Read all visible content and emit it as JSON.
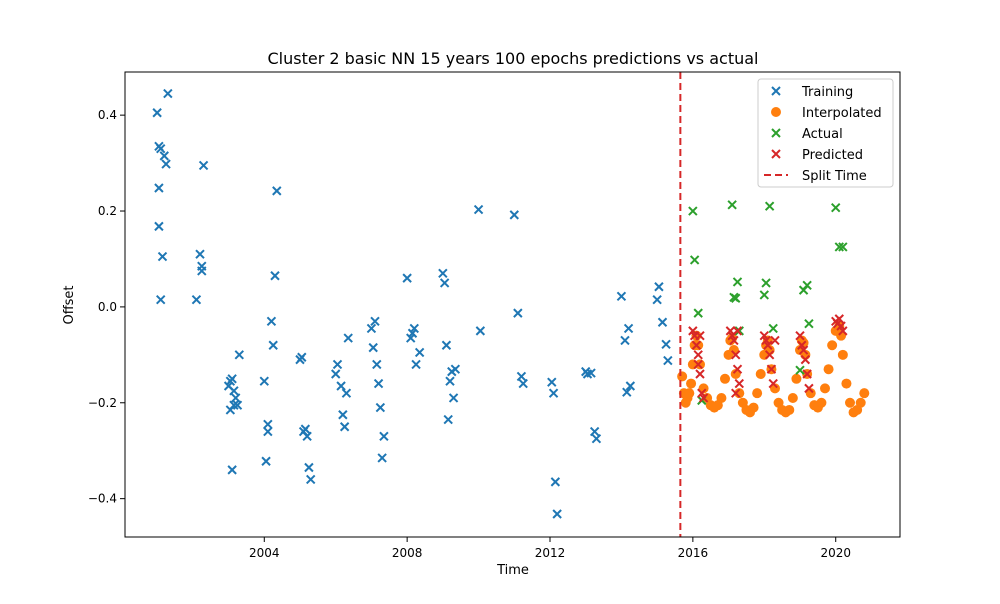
{
  "chart_data": {
    "type": "scatter",
    "title": "Cluster 2 basic NN 15 years 100 epochs predictions vs actual",
    "xlabel": "Time",
    "ylabel": "Offset",
    "xlim": [
      2000.1,
      2021.8
    ],
    "ylim": [
      -0.48,
      0.49
    ],
    "x_ticks": [
      2004,
      2008,
      2012,
      2016,
      2020
    ],
    "y_ticks": [
      0.4,
      0.2,
      0.0,
      -0.2,
      -0.4
    ],
    "x_tick_labels": [
      "2004",
      "2008",
      "2012",
      "2016",
      "2020"
    ],
    "y_tick_labels": [
      "0.4",
      "0.2",
      "0.0",
      "−0.2",
      "−0.4"
    ],
    "split_time": 2015.65,
    "legend_position": "top-right",
    "series": [
      {
        "name": "Training",
        "color": "#1f77b4",
        "marker": "x",
        "points": [
          [
            2001.0,
            0.405
          ],
          [
            2001.05,
            0.335
          ],
          [
            2001.3,
            0.445
          ],
          [
            2001.1,
            0.33
          ],
          [
            2001.2,
            0.315
          ],
          [
            2001.25,
            0.298
          ],
          [
            2001.05,
            0.248
          ],
          [
            2001.05,
            0.168
          ],
          [
            2001.15,
            0.105
          ],
          [
            2001.1,
            0.015
          ],
          [
            2002.1,
            0.015
          ],
          [
            2002.2,
            0.11
          ],
          [
            2002.25,
            0.085
          ],
          [
            2002.25,
            0.075
          ],
          [
            2002.3,
            0.295
          ],
          [
            2003.0,
            -0.165
          ],
          [
            2003.05,
            -0.155
          ],
          [
            2003.1,
            -0.15
          ],
          [
            2003.15,
            -0.175
          ],
          [
            2003.2,
            -0.19
          ],
          [
            2003.05,
            -0.215
          ],
          [
            2003.15,
            -0.205
          ],
          [
            2003.25,
            -0.205
          ],
          [
            2003.3,
            -0.1
          ],
          [
            2003.1,
            -0.34
          ],
          [
            2004.0,
            -0.155
          ],
          [
            2004.05,
            -0.322
          ],
          [
            2004.1,
            -0.245
          ],
          [
            2004.1,
            -0.26
          ],
          [
            2004.2,
            -0.03
          ],
          [
            2004.25,
            -0.08
          ],
          [
            2004.3,
            0.065
          ],
          [
            2004.35,
            0.242
          ],
          [
            2005.0,
            -0.11
          ],
          [
            2005.05,
            -0.105
          ],
          [
            2005.1,
            -0.26
          ],
          [
            2005.15,
            -0.255
          ],
          [
            2005.2,
            -0.27
          ],
          [
            2005.25,
            -0.335
          ],
          [
            2005.3,
            -0.36
          ],
          [
            2006.0,
            -0.14
          ],
          [
            2006.05,
            -0.12
          ],
          [
            2006.15,
            -0.165
          ],
          [
            2006.2,
            -0.225
          ],
          [
            2006.25,
            -0.25
          ],
          [
            2006.3,
            -0.18
          ],
          [
            2006.35,
            -0.065
          ],
          [
            2007.0,
            -0.045
          ],
          [
            2007.05,
            -0.085
          ],
          [
            2007.1,
            -0.03
          ],
          [
            2007.15,
            -0.12
          ],
          [
            2007.2,
            -0.16
          ],
          [
            2007.25,
            -0.21
          ],
          [
            2007.3,
            -0.315
          ],
          [
            2007.35,
            -0.27
          ],
          [
            2008.0,
            0.06
          ],
          [
            2008.1,
            -0.065
          ],
          [
            2008.15,
            -0.055
          ],
          [
            2008.2,
            -0.045
          ],
          [
            2008.25,
            -0.12
          ],
          [
            2008.35,
            -0.095
          ],
          [
            2009.0,
            0.07
          ],
          [
            2009.05,
            0.05
          ],
          [
            2009.1,
            -0.08
          ],
          [
            2009.15,
            -0.235
          ],
          [
            2009.2,
            -0.155
          ],
          [
            2009.25,
            -0.135
          ],
          [
            2009.3,
            -0.19
          ],
          [
            2009.35,
            -0.13
          ],
          [
            2010.0,
            0.203
          ],
          [
            2010.05,
            -0.05
          ],
          [
            2011.0,
            0.192
          ],
          [
            2011.1,
            -0.013
          ],
          [
            2011.2,
            -0.145
          ],
          [
            2011.25,
            -0.16
          ],
          [
            2012.05,
            -0.157
          ],
          [
            2012.1,
            -0.18
          ],
          [
            2012.15,
            -0.365
          ],
          [
            2012.2,
            -0.432
          ],
          [
            2013.0,
            -0.135
          ],
          [
            2013.05,
            -0.14
          ],
          [
            2013.15,
            -0.138
          ],
          [
            2013.25,
            -0.26
          ],
          [
            2013.3,
            -0.275
          ],
          [
            2014.0,
            0.022
          ],
          [
            2014.1,
            -0.07
          ],
          [
            2014.15,
            -0.178
          ],
          [
            2014.2,
            -0.045
          ],
          [
            2014.25,
            -0.165
          ],
          [
            2015.0,
            0.015
          ],
          [
            2015.05,
            0.042
          ],
          [
            2015.15,
            -0.032
          ],
          [
            2015.25,
            -0.078
          ],
          [
            2015.3,
            -0.112
          ]
        ]
      },
      {
        "name": "Interpolated",
        "color": "#ff7f0e",
        "marker": "o",
        "points": [
          [
            2015.7,
            -0.145
          ],
          [
            2015.75,
            -0.18
          ],
          [
            2015.8,
            -0.2
          ],
          [
            2015.85,
            -0.19
          ],
          [
            2015.9,
            -0.18
          ],
          [
            2015.95,
            -0.16
          ],
          [
            2016.0,
            -0.12
          ],
          [
            2016.05,
            -0.08
          ],
          [
            2016.1,
            -0.06
          ],
          [
            2016.15,
            -0.08
          ],
          [
            2016.2,
            -0.12
          ],
          [
            2016.3,
            -0.17
          ],
          [
            2016.4,
            -0.19
          ],
          [
            2016.5,
            -0.205
          ],
          [
            2016.6,
            -0.21
          ],
          [
            2016.7,
            -0.205
          ],
          [
            2016.8,
            -0.19
          ],
          [
            2016.9,
            -0.15
          ],
          [
            2017.0,
            -0.1
          ],
          [
            2017.05,
            -0.07
          ],
          [
            2017.1,
            -0.065
          ],
          [
            2017.15,
            -0.09
          ],
          [
            2017.2,
            -0.14
          ],
          [
            2017.3,
            -0.18
          ],
          [
            2017.4,
            -0.2
          ],
          [
            2017.5,
            -0.215
          ],
          [
            2017.6,
            -0.22
          ],
          [
            2017.7,
            -0.21
          ],
          [
            2017.8,
            -0.18
          ],
          [
            2017.9,
            -0.14
          ],
          [
            2018.0,
            -0.1
          ],
          [
            2018.05,
            -0.08
          ],
          [
            2018.1,
            -0.07
          ],
          [
            2018.15,
            -0.09
          ],
          [
            2018.2,
            -0.13
          ],
          [
            2018.3,
            -0.17
          ],
          [
            2018.4,
            -0.2
          ],
          [
            2018.5,
            -0.215
          ],
          [
            2018.6,
            -0.22
          ],
          [
            2018.7,
            -0.215
          ],
          [
            2018.8,
            -0.19
          ],
          [
            2018.9,
            -0.15
          ],
          [
            2019.0,
            -0.09
          ],
          [
            2019.05,
            -0.07
          ],
          [
            2019.1,
            -0.075
          ],
          [
            2019.15,
            -0.1
          ],
          [
            2019.2,
            -0.14
          ],
          [
            2019.3,
            -0.18
          ],
          [
            2019.4,
            -0.205
          ],
          [
            2019.5,
            -0.21
          ],
          [
            2019.6,
            -0.2
          ],
          [
            2019.7,
            -0.17
          ],
          [
            2019.8,
            -0.13
          ],
          [
            2019.9,
            -0.08
          ],
          [
            2020.0,
            -0.05
          ],
          [
            2020.1,
            -0.04
          ],
          [
            2020.15,
            -0.06
          ],
          [
            2020.2,
            -0.1
          ],
          [
            2020.3,
            -0.16
          ],
          [
            2020.4,
            -0.2
          ],
          [
            2020.5,
            -0.22
          ],
          [
            2020.6,
            -0.215
          ],
          [
            2020.7,
            -0.2
          ],
          [
            2020.8,
            -0.18
          ]
        ]
      },
      {
        "name": "Actual",
        "color": "#2ca02c",
        "marker": "x",
        "points": [
          [
            2016.0,
            0.2
          ],
          [
            2016.05,
            0.098
          ],
          [
            2016.15,
            -0.013
          ],
          [
            2016.25,
            -0.195
          ],
          [
            2017.1,
            0.213
          ],
          [
            2017.15,
            0.02
          ],
          [
            2017.2,
            0.018
          ],
          [
            2017.25,
            0.052
          ],
          [
            2017.3,
            -0.05
          ],
          [
            2018.0,
            0.025
          ],
          [
            2018.05,
            0.05
          ],
          [
            2018.15,
            0.21
          ],
          [
            2018.25,
            -0.045
          ],
          [
            2019.0,
            -0.132
          ],
          [
            2019.1,
            0.035
          ],
          [
            2019.2,
            0.045
          ],
          [
            2019.25,
            -0.035
          ],
          [
            2020.0,
            0.207
          ],
          [
            2020.1,
            0.125
          ],
          [
            2020.2,
            0.125
          ]
        ]
      },
      {
        "name": "Predicted",
        "color": "#d62728",
        "marker": "x",
        "points": [
          [
            2016.0,
            -0.05
          ],
          [
            2016.05,
            -0.06
          ],
          [
            2016.1,
            -0.08
          ],
          [
            2016.15,
            -0.1
          ],
          [
            2016.2,
            -0.14
          ],
          [
            2016.25,
            -0.18
          ],
          [
            2016.3,
            -0.19
          ],
          [
            2016.2,
            -0.06
          ],
          [
            2016.15,
            -0.12
          ],
          [
            2017.05,
            -0.05
          ],
          [
            2017.1,
            -0.06
          ],
          [
            2017.15,
            -0.07
          ],
          [
            2017.2,
            -0.1
          ],
          [
            2017.25,
            -0.13
          ],
          [
            2017.3,
            -0.16
          ],
          [
            2017.25,
            -0.05
          ],
          [
            2017.2,
            -0.18
          ],
          [
            2018.0,
            -0.06
          ],
          [
            2018.05,
            -0.07
          ],
          [
            2018.1,
            -0.08
          ],
          [
            2018.15,
            -0.1
          ],
          [
            2018.2,
            -0.13
          ],
          [
            2018.25,
            -0.16
          ],
          [
            2018.3,
            -0.07
          ],
          [
            2019.0,
            -0.06
          ],
          [
            2019.05,
            -0.08
          ],
          [
            2019.1,
            -0.09
          ],
          [
            2019.15,
            -0.11
          ],
          [
            2019.2,
            -0.14
          ],
          [
            2019.25,
            -0.17
          ],
          [
            2020.0,
            -0.03
          ],
          [
            2020.05,
            -0.035
          ],
          [
            2020.1,
            -0.025
          ],
          [
            2020.15,
            -0.04
          ],
          [
            2020.2,
            -0.05
          ]
        ]
      }
    ],
    "legend_entries": [
      "Training",
      "Interpolated",
      "Actual",
      "Predicted",
      "Split Time"
    ],
    "split_color": "#d62728"
  }
}
